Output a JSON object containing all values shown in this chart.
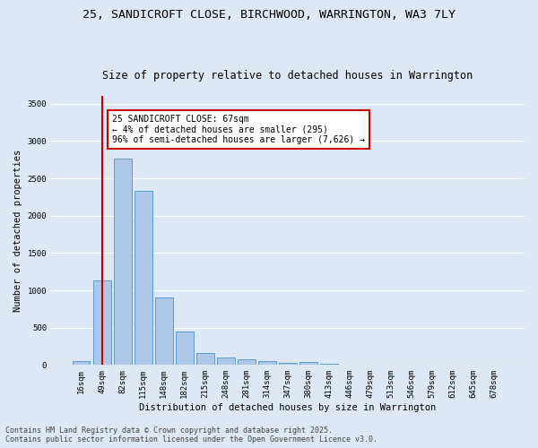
{
  "title_line1": "25, SANDICROFT CLOSE, BIRCHWOOD, WARRINGTON, WA3 7LY",
  "title_line2": "Size of property relative to detached houses in Warrington",
  "xlabel": "Distribution of detached houses by size in Warrington",
  "ylabel": "Number of detached properties",
  "categories": [
    "16sqm",
    "49sqm",
    "82sqm",
    "115sqm",
    "148sqm",
    "182sqm",
    "215sqm",
    "248sqm",
    "281sqm",
    "314sqm",
    "347sqm",
    "380sqm",
    "413sqm",
    "446sqm",
    "479sqm",
    "513sqm",
    "546sqm",
    "579sqm",
    "612sqm",
    "645sqm",
    "678sqm"
  ],
  "values": [
    50,
    1130,
    2770,
    2330,
    900,
    450,
    165,
    105,
    80,
    55,
    30,
    35,
    15,
    10,
    5,
    3,
    2,
    1,
    1,
    0,
    0
  ],
  "bar_color": "#aec6e8",
  "bar_edge_color": "#5b9bd5",
  "vline_x": 1.0,
  "annotation_text": "25 SANDICROFT CLOSE: 67sqm\n← 4% of detached houses are smaller (295)\n96% of semi-detached houses are larger (7,626) →",
  "annotation_box_color": "#ffffff",
  "annotation_box_edge": "#cc0000",
  "vline_color": "#cc0000",
  "ylim": [
    0,
    3600
  ],
  "yticks": [
    0,
    500,
    1000,
    1500,
    2000,
    2500,
    3000,
    3500
  ],
  "background_color": "#dce8f5",
  "grid_color": "#ffffff",
  "footer_line1": "Contains HM Land Registry data © Crown copyright and database right 2025.",
  "footer_line2": "Contains public sector information licensed under the Open Government Licence v3.0.",
  "title_fontsize": 9.5,
  "subtitle_fontsize": 8.5,
  "axis_label_fontsize": 7.5,
  "tick_fontsize": 6.5,
  "annotation_fontsize": 7.0,
  "footer_fontsize": 6.0
}
